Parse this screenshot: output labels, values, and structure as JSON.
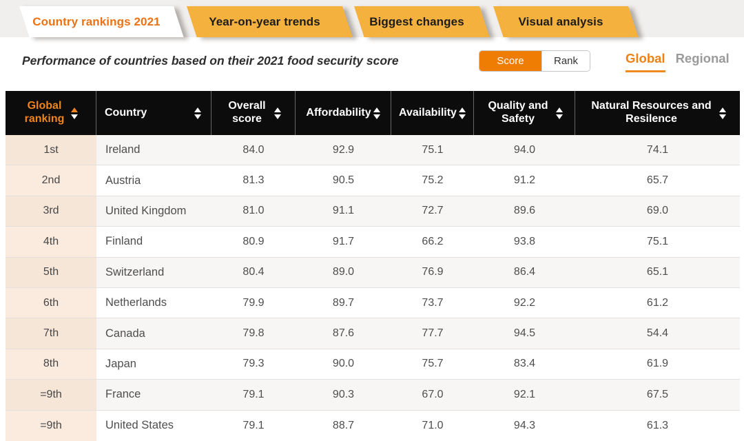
{
  "tabs": [
    {
      "label": "Country rankings 2021",
      "active": true
    },
    {
      "label": "Year-on-year trends",
      "active": false
    },
    {
      "label": "Biggest changes",
      "active": false
    },
    {
      "label": "Visual analysis",
      "active": false
    }
  ],
  "subtitle": "Performance of countries based on their 2021 food security score",
  "toggle": {
    "score_label": "Score",
    "rank_label": "Rank",
    "selected": "Score"
  },
  "scope": {
    "global_label": "Global",
    "regional_label": "Regional",
    "selected": "Global"
  },
  "colors": {
    "accent_orange": "#ed7213",
    "toggle_orange": "#ef7c03",
    "tab_amber": "#f4b13d",
    "header_bg": "#0c0c0c",
    "rank_column_bg": "#fbeade",
    "sorted_arrow_orange": "#f0851c"
  },
  "table": {
    "columns": [
      {
        "label": "Global ranking",
        "sorted": "asc"
      },
      {
        "label": "Country",
        "sorted": null
      },
      {
        "label": "Overall score",
        "sorted": null
      },
      {
        "label": "Affordability",
        "sorted": null
      },
      {
        "label": "Availability",
        "sorted": null
      },
      {
        "label": "Quality and Safety",
        "sorted": null
      },
      {
        "label": "Natural Resources and Resilence",
        "sorted": null
      }
    ],
    "rows": [
      {
        "rank": "1st",
        "country": "Ireland",
        "values": [
          "84.0",
          "92.9",
          "75.1",
          "94.0",
          "74.1"
        ]
      },
      {
        "rank": "2nd",
        "country": "Austria",
        "values": [
          "81.3",
          "90.5",
          "75.2",
          "91.2",
          "65.7"
        ]
      },
      {
        "rank": "3rd",
        "country": "United Kingdom",
        "values": [
          "81.0",
          "91.1",
          "72.7",
          "89.6",
          "69.0"
        ]
      },
      {
        "rank": "4th",
        "country": "Finland",
        "values": [
          "80.9",
          "91.7",
          "66.2",
          "93.8",
          "75.1"
        ]
      },
      {
        "rank": "5th",
        "country": "Switzerland",
        "values": [
          "80.4",
          "89.0",
          "76.9",
          "86.4",
          "65.1"
        ]
      },
      {
        "rank": "6th",
        "country": "Netherlands",
        "values": [
          "79.9",
          "89.7",
          "73.7",
          "92.2",
          "61.2"
        ]
      },
      {
        "rank": "7th",
        "country": "Canada",
        "values": [
          "79.8",
          "87.6",
          "77.7",
          "94.5",
          "54.4"
        ]
      },
      {
        "rank": "8th",
        "country": "Japan",
        "values": [
          "79.3",
          "90.0",
          "75.7",
          "83.4",
          "61.9"
        ]
      },
      {
        "rank": "=9th",
        "country": "France",
        "values": [
          "79.1",
          "90.3",
          "67.0",
          "92.1",
          "67.5"
        ]
      },
      {
        "rank": "=9th",
        "country": "United States",
        "values": [
          "79.1",
          "88.7",
          "71.0",
          "94.3",
          "61.3"
        ]
      }
    ]
  }
}
